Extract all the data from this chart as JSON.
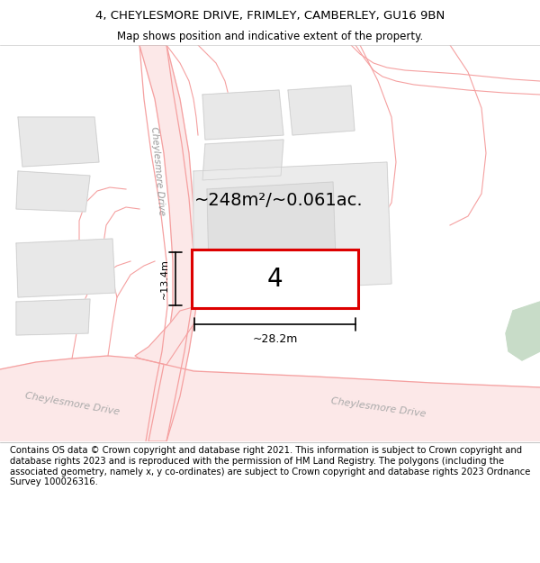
{
  "title_line1": "4, CHEYLESMORE DRIVE, FRIMLEY, CAMBERLEY, GU16 9BN",
  "title_line2": "Map shows position and indicative extent of the property.",
  "footer_text": "Contains OS data © Crown copyright and database right 2021. This information is subject to Crown copyright and database rights 2023 and is reproduced with the permission of HM Land Registry. The polygons (including the associated geometry, namely x, y co-ordinates) are subject to Crown copyright and database rights 2023 Ordnance Survey 100026316.",
  "area_text": "~248m²/~0.061ac.",
  "width_label": "~28.2m",
  "height_label": "~13.4m",
  "plot_number": "4",
  "map_bg": "#ffffff",
  "road_line_color": "#f5a0a0",
  "road_fill_color": "#fce8e8",
  "building_fill": "#e8e8e8",
  "building_edge": "#cccccc",
  "red_rect_color": "#dd0000",
  "green_patch": "#c8dcc8",
  "title_fontsize": 9.5,
  "subtitle_fontsize": 8.5,
  "footer_fontsize": 7.2,
  "area_fontsize": 14,
  "label_fontsize": 8,
  "plot_num_fontsize": 20
}
